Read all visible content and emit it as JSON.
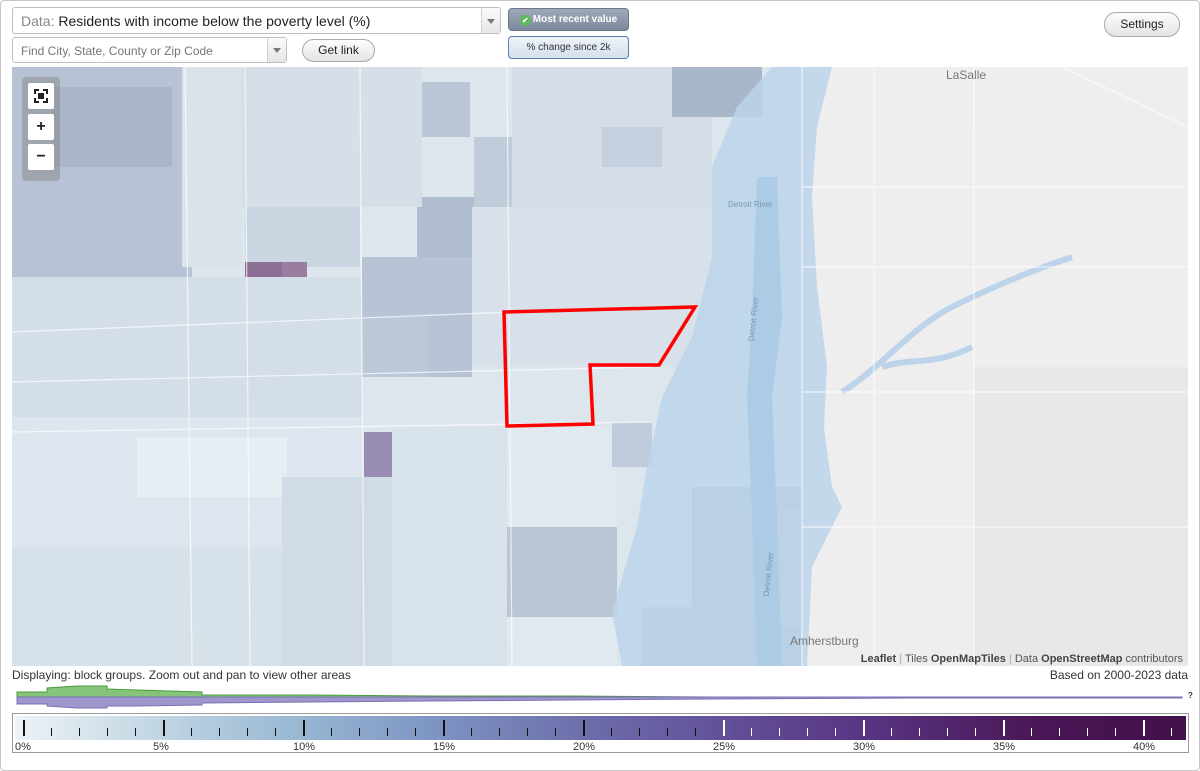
{
  "data_select": {
    "prefix": "Data:",
    "value": "Residents with income below the poverty level (%)"
  },
  "search": {
    "placeholder": "Find City, State, County or Zip Code"
  },
  "buttons": {
    "get_link": "Get link",
    "settings": "Settings"
  },
  "toggles": {
    "most_recent": "Most recent value",
    "change": "% change since 2k"
  },
  "map": {
    "labels": {
      "lasalle": "LaSalle",
      "amherstburg": "Amherstburg",
      "river1": "Detroit River",
      "river2": "Detroit River",
      "river3": "Detroit River"
    },
    "highlight_color": "#ff0000",
    "water_color": "#bcd3ea"
  },
  "attribution": {
    "leaflet": "Leaflet",
    "tiles_prefix": "Tiles",
    "tiles": "OpenMapTiles",
    "data_prefix": "Data",
    "osm": "OpenStreetMap",
    "suffix": "contributors"
  },
  "status": "Displaying: block groups. Zoom out and pan to view other areas",
  "years": "Based on 2000-2023 data",
  "legend": {
    "labels": [
      "0%",
      "5%",
      "10%",
      "15%",
      "20%",
      "25%",
      "30%",
      "35%",
      "40%"
    ],
    "help": "?"
  }
}
